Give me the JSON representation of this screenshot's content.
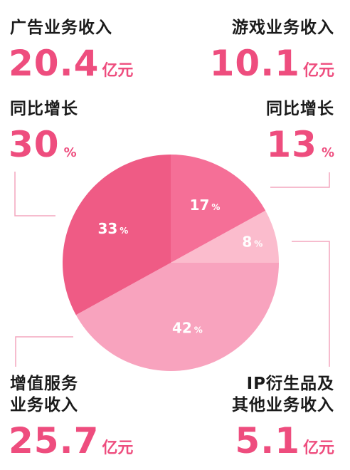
{
  "chart_data": {
    "type": "pie",
    "slices": [
      {
        "label": "游戏业务收入",
        "value": 17,
        "color": "#f56f97"
      },
      {
        "label": "IP衍生品及其他业务收入",
        "value": 8,
        "color": "#fbbccd"
      },
      {
        "label": "增值服务业务收入",
        "value": 42,
        "color": "#f8a3be"
      },
      {
        "label": "广告业务收入",
        "value": 33,
        "color": "#ef5b85"
      }
    ],
    "percent_suffix": "%"
  },
  "callouts": {
    "ad": {
      "title": "广告业务收入",
      "amount": "20.4",
      "unit": "亿元",
      "growth_title": "同比增长",
      "growth": "30",
      "growth_unit": "%"
    },
    "game": {
      "title": "游戏业务收入",
      "amount": "10.1",
      "unit": "亿元",
      "growth_title": "同比增长",
      "growth": "13",
      "growth_unit": "%"
    },
    "vas": {
      "title_line1": "增值服务",
      "title_line2": "业务收入",
      "amount": "25.7",
      "unit": "亿元"
    },
    "ip": {
      "title_line1": "IP衍生品及",
      "title_line2": "其他业务收入",
      "amount": "5.1",
      "unit": "亿元"
    }
  },
  "colors": {
    "accent": "#ee4d7e",
    "connector": "#f3a6bd"
  }
}
